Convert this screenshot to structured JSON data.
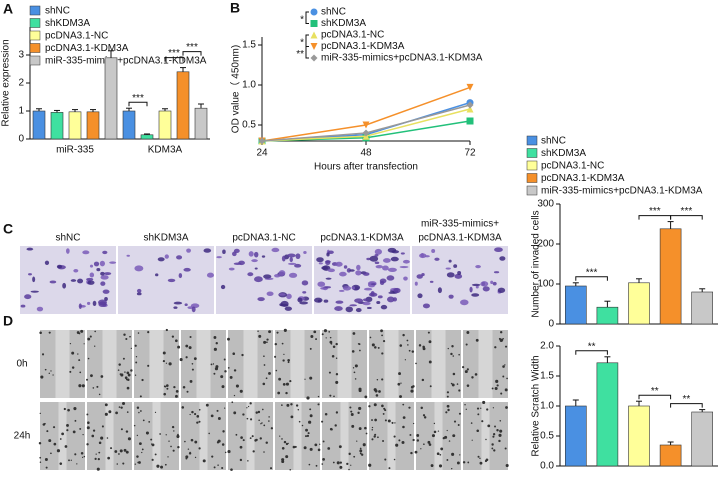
{
  "panel_labels": [
    "A",
    "B",
    "C",
    "D"
  ],
  "invasion_labels": [
    "shNC",
    "shKDM3A",
    "pcDNA3.1-NC",
    "pcDNA3.1-KDM3A",
    [
      "miR-335-mimics+",
      "pcDNA3.1-KDM3A"
    ]
  ],
  "scratch_rows": [
    "0h",
    "24h"
  ],
  "chart_data": [
    {
      "type": "bar",
      "ylabel": "Relative expression",
      "categories": [
        "miR-335",
        "KDM3A"
      ],
      "series": [
        {
          "name": "shNC",
          "color": "#4a90e2",
          "values": [
            1.0,
            1.0
          ],
          "errors": [
            0.08,
            0.1
          ]
        },
        {
          "name": "shKDM3A",
          "color": "#3fe0a0",
          "values": [
            0.95,
            0.15
          ],
          "errors": [
            0.07,
            0.03
          ]
        },
        {
          "name": "pcDNA3.1-NC",
          "color": "#ffff99",
          "values": [
            0.97,
            1.0
          ],
          "errors": [
            0.08,
            0.08
          ]
        },
        {
          "name": "pcDNA3.1-KDM3A",
          "color": "#f5902a",
          "values": [
            0.97,
            2.4
          ],
          "errors": [
            0.08,
            0.15
          ]
        },
        {
          "name": "miR-335-mimics+pcDNA3.1-KDM3A",
          "color": "#c8c8c8",
          "values": [
            2.9,
            1.1
          ],
          "errors": [
            0.25,
            0.15
          ]
        }
      ],
      "ylim": [
        0,
        4
      ],
      "yticks": [
        0,
        1,
        2,
        3
      ],
      "annotations": [
        {
          "text": "***",
          "category": 1,
          "from": 0,
          "to": 1
        },
        {
          "text": "***",
          "category": 1,
          "from": 2,
          "to": 3
        },
        {
          "text": "***",
          "category": 1,
          "from": 3,
          "to": 4
        }
      ]
    },
    {
      "type": "line",
      "xlabel": "Hours after transfection",
      "ylabel": "OD value（ 450nm)",
      "x": [
        24,
        48,
        72
      ],
      "series": [
        {
          "name": "shNC",
          "color": "#4a90e2",
          "marker": "circle",
          "values": [
            0.3,
            0.38,
            0.78
          ]
        },
        {
          "name": "shKDM3A",
          "color": "#22c07a",
          "marker": "square",
          "values": [
            0.3,
            0.34,
            0.55
          ]
        },
        {
          "name": "pcDNA3.1-NC",
          "color": "#e8e060",
          "marker": "triangle",
          "values": [
            0.3,
            0.36,
            0.7
          ]
        },
        {
          "name": "pcDNA3.1-KDM3A",
          "color": "#f5902a",
          "marker": "triangle-down",
          "values": [
            0.3,
            0.5,
            0.97
          ]
        },
        {
          "name": "miR-335-mimics+pcDNA3.1-KDM3A",
          "color": "#999999",
          "marker": "diamond",
          "values": [
            0.3,
            0.4,
            0.75
          ]
        }
      ],
      "xlim": [
        24,
        72
      ],
      "xticks": [
        24,
        48,
        72
      ],
      "ylim": [
        0.3,
        1.6
      ],
      "yticks": [
        0.5,
        {
          "value": 1,
          "label": "1.0"
        },
        1.5
      ],
      "annotations": [
        {
          "text": "*",
          "from": 0,
          "to": 1
        },
        {
          "text": "*",
          "from": 2,
          "to": 3
        },
        {
          "text": "**",
          "from": 3,
          "to": 4
        }
      ]
    },
    {
      "type": "bar",
      "ylabel": "Number of invaded cells",
      "categories": [
        "shNC",
        "shKDM3A",
        "pcDNA3.1-NC",
        "pcDNA3.1-KDM3A",
        "miR-335-mimics+pcDNA3.1-KDM3A"
      ],
      "legend": true,
      "colors": [
        "#4a90e2",
        "#3fe0a0",
        "#ffff99",
        "#f5902a",
        "#c8c8c8"
      ],
      "values": [
        95,
        42,
        103,
        238,
        80
      ],
      "errors": [
        8,
        15,
        10,
        18,
        8
      ],
      "ylim": [
        0,
        300
      ],
      "yticks": [
        0,
        100,
        200,
        300
      ],
      "annotations": [
        {
          "text": "***",
          "from": 0,
          "to": 1
        },
        {
          "text": "***",
          "from": 2,
          "to": 3
        },
        {
          "text": "***",
          "from": 3,
          "to": 4
        }
      ]
    },
    {
      "type": "bar",
      "ylabel": "Relative Scratch Width",
      "categories": [
        null,
        null,
        null,
        null,
        null
      ],
      "colors": [
        "#4a90e2",
        "#3fe0a0",
        "#ffff99",
        "#f5902a",
        "#c8c8c8"
      ],
      "values": [
        1.0,
        1.72,
        1.0,
        0.35,
        0.9
      ],
      "errors": [
        0.1,
        0.1,
        0.08,
        0.05,
        0.04
      ],
      "ylim": [
        0,
        2
      ],
      "yticks": [
        {
          "value": 0,
          "label": "0.0"
        },
        0.5,
        {
          "value": 1,
          "label": "1.0"
        },
        1.5,
        {
          "value": 2,
          "label": "2.0"
        }
      ],
      "annotations": [
        {
          "text": "**",
          "from": 0,
          "to": 1
        },
        {
          "text": "**",
          "from": 2,
          "to": 3
        },
        {
          "text": "**",
          "from": 3,
          "to": 4
        }
      ]
    }
  ]
}
